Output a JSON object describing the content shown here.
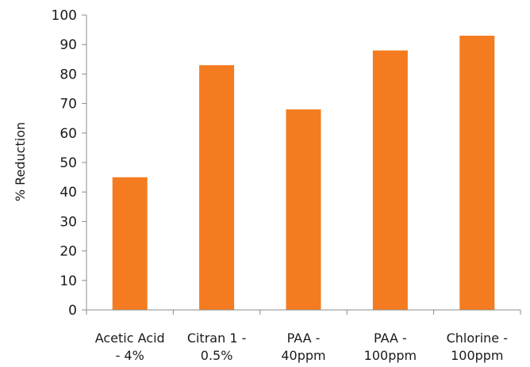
{
  "chart_data": {
    "type": "bar",
    "categories": [
      [
        "Acetic Acid",
        "- 4%"
      ],
      [
        "Citran 1 -",
        "0.5%"
      ],
      [
        "PAA -",
        "40ppm"
      ],
      [
        "PAA -",
        "100ppm"
      ],
      [
        "Chlorine -",
        "100ppm"
      ]
    ],
    "values": [
      45,
      83,
      68,
      88,
      93
    ],
    "title": "",
    "xlabel": "",
    "ylabel": "% Reduction",
    "ylim": [
      0,
      100
    ],
    "yticks": [
      0,
      10,
      20,
      30,
      40,
      50,
      60,
      70,
      80,
      90,
      100
    ],
    "grid": false,
    "legend": "none",
    "colors": {
      "bar": "#f47b20",
      "axis": "#8c8c8c",
      "text": "#1a1a1a"
    }
  }
}
